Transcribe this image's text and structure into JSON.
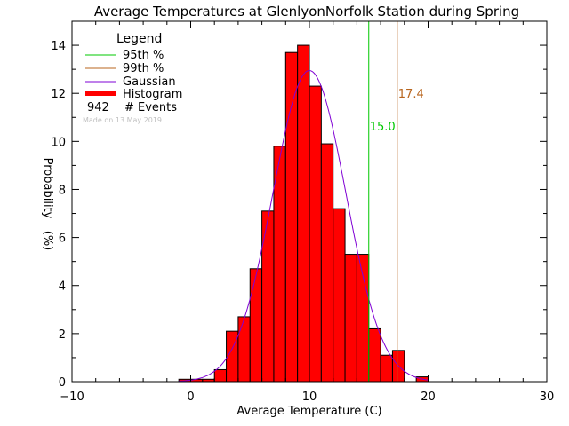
{
  "chart_data": {
    "type": "bar",
    "title": "Average Temperatures at GlenlyonNorfolk Station during Spring",
    "xlabel": "Average Temperature (C)",
    "ylabel_line1": "Probability",
    "ylabel_line2": "(%)",
    "xlim": [
      -10,
      30
    ],
    "ylim": [
      0,
      15
    ],
    "x_ticks": [
      -10,
      0,
      10,
      20,
      30
    ],
    "y_ticks": [
      0,
      2,
      4,
      6,
      8,
      10,
      12,
      14
    ],
    "bin_width": 1,
    "histogram": {
      "bin_starts": [
        -1,
        0,
        1,
        2,
        3,
        4,
        5,
        6,
        7,
        8,
        9,
        10,
        11,
        12,
        13,
        14,
        15,
        16,
        17,
        18,
        19
      ],
      "values": [
        0.1,
        0.1,
        0.1,
        0.5,
        2.1,
        2.7,
        4.7,
        7.1,
        9.8,
        13.7,
        14.0,
        12.3,
        9.9,
        7.2,
        5.3,
        5.3,
        2.2,
        1.1,
        1.3,
        0.0,
        0.2
      ],
      "color": "#ff0000"
    },
    "gaussian": {
      "mean": 10.0,
      "sigma": 3.07,
      "peak": 12.95,
      "color": "#7f00d4"
    },
    "percentile_95": {
      "x": 15.0,
      "label": "15.0",
      "color": "#00c800"
    },
    "percentile_99": {
      "x": 17.4,
      "label": "17.4",
      "color": "#b8651e"
    },
    "legend": {
      "title": "Legend",
      "items": [
        {
          "label": "95th %",
          "color": "#00c800"
        },
        {
          "label": "99th %",
          "color": "#b8651e"
        },
        {
          "label": "Gaussian",
          "color": "#7f00d4"
        },
        {
          "label": "Histogram",
          "color": "#ff0000"
        }
      ],
      "events_count": "942",
      "events_label": "# Events",
      "made_on": "Made on 13 May 2019"
    }
  }
}
